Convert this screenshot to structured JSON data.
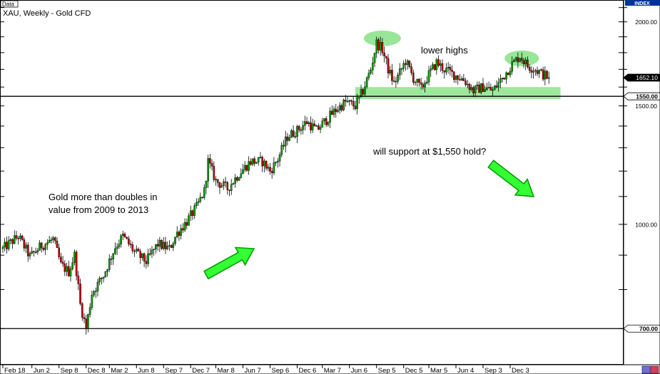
{
  "window": {
    "tab_label": "Data",
    "title": "XAU, Weekly - Gold CFD",
    "index_label": "INDEX"
  },
  "chart_data": {
    "type": "candlestick",
    "title": "XAU, Weekly - Gold CFD",
    "ylim": [
      620,
      2150
    ],
    "y_axis_ticks": [
      "2000.00",
      "1500.00",
      "1000.00"
    ],
    "price_flags": [
      {
        "label": "1652.10",
        "value": 1652.1,
        "kind": "current"
      },
      {
        "label": "1550.00",
        "value": 1550,
        "kind": "line"
      },
      {
        "label": "700.00",
        "value": 700,
        "kind": "line"
      }
    ],
    "horizontal_lines": [
      1550,
      700
    ],
    "x_tick_labels": [
      "Feb 18",
      "Jun 2",
      "Sep 8",
      "Dec 8",
      "Mar 2",
      "Jun 8",
      "Sep 7",
      "Dec 7",
      "Mar 8",
      "Jun 7",
      "Sep 6",
      "Dec 6",
      "Mar 7",
      "Jun 6",
      "Sep 5",
      "Dec 5",
      "Mar 5",
      "Jun 4",
      "Sep 3",
      "Dec 3"
    ],
    "n_weeks": 300,
    "x_tick_weeks": [
      0,
      15,
      29,
      43,
      55,
      69,
      83,
      97,
      110,
      124,
      138,
      152,
      165,
      179,
      193,
      207,
      220,
      234,
      248,
      262
    ],
    "price_path": [
      [
        0,
        920
      ],
      [
        8,
        960
      ],
      [
        14,
        895
      ],
      [
        20,
        930
      ],
      [
        26,
        950
      ],
      [
        30,
        870
      ],
      [
        34,
        850
      ],
      [
        37,
        900
      ],
      [
        40,
        760
      ],
      [
        43,
        700
      ],
      [
        46,
        790
      ],
      [
        52,
        840
      ],
      [
        58,
        925
      ],
      [
        62,
        960
      ],
      [
        68,
        910
      ],
      [
        74,
        880
      ],
      [
        80,
        935
      ],
      [
        86,
        920
      ],
      [
        90,
        970
      ],
      [
        95,
        1010
      ],
      [
        100,
        1060
      ],
      [
        104,
        1120
      ],
      [
        106,
        1240
      ],
      [
        110,
        1160
      ],
      [
        116,
        1130
      ],
      [
        122,
        1190
      ],
      [
        128,
        1240
      ],
      [
        134,
        1240
      ],
      [
        138,
        1200
      ],
      [
        142,
        1250
      ],
      [
        147,
        1350
      ],
      [
        152,
        1380
      ],
      [
        157,
        1420
      ],
      [
        162,
        1380
      ],
      [
        167,
        1430
      ],
      [
        172,
        1480
      ],
      [
        177,
        1520
      ],
      [
        182,
        1500
      ],
      [
        186,
        1580
      ],
      [
        190,
        1700
      ],
      [
        193,
        1860
      ],
      [
        196,
        1820
      ],
      [
        199,
        1700
      ],
      [
        202,
        1620
      ],
      [
        205,
        1680
      ],
      [
        208,
        1750
      ],
      [
        212,
        1650
      ],
      [
        216,
        1590
      ],
      [
        220,
        1670
      ],
      [
        224,
        1740
      ],
      [
        228,
        1700
      ],
      [
        233,
        1670
      ],
      [
        238,
        1640
      ],
      [
        243,
        1580
      ],
      [
        248,
        1600
      ],
      [
        253,
        1580
      ],
      [
        258,
        1650
      ],
      [
        263,
        1730
      ],
      [
        267,
        1780
      ],
      [
        271,
        1720
      ],
      [
        275,
        1700
      ],
      [
        279,
        1670
      ],
      [
        282,
        1652
      ]
    ],
    "annotations": [
      {
        "text": "lower highs",
        "kind": "label"
      },
      {
        "text": "will support at $1,550 hold?",
        "kind": "label"
      },
      {
        "text": "Gold more than doubles in value from 2009 to 2013",
        "kind": "label"
      }
    ],
    "colors": {
      "up": "#00a000",
      "down": "#c00000",
      "highlight": "#7ee07e",
      "arrow": "#33ff33",
      "arrow_stroke": "#009900",
      "flag_current": "#000000"
    }
  }
}
